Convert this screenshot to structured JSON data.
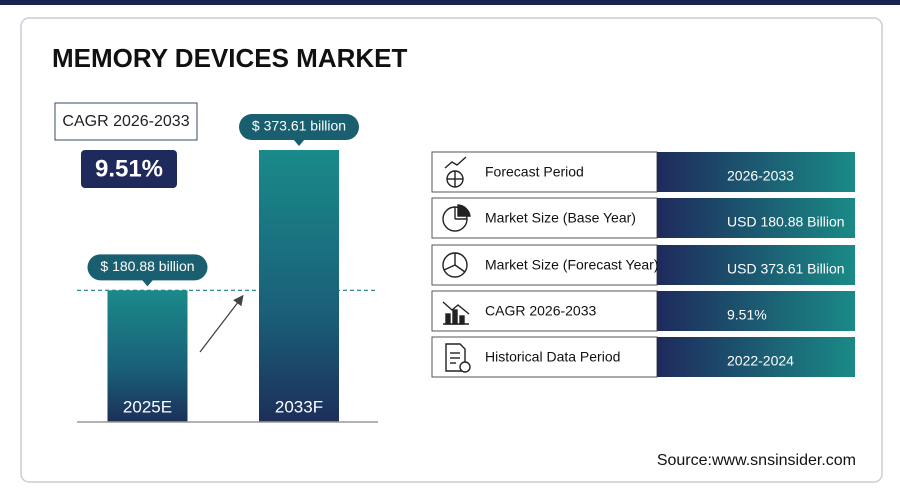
{
  "chart_data": {
    "type": "bar",
    "title": "MEMORY DEVICES MARKET",
    "categories": [
      "2025E",
      "2033F"
    ],
    "values": [
      180.88,
      373.61
    ],
    "value_labels": [
      "$ 180.88 billion",
      "$ 373.61 billion"
    ]
  },
  "cagr": {
    "label": "CAGR 2026-2033",
    "value": "9.51%"
  },
  "table": {
    "rows": [
      [
        "Forecast Period",
        "2026-2033"
      ],
      [
        "Market Size (Base Year)",
        "USD 180.88 Billion"
      ],
      [
        "Market Size (Forecast Year)",
        "USD 373.61 Billion"
      ],
      [
        "CAGR 2026-2033",
        "9.51%"
      ],
      [
        "Historical Data Period",
        "2022-2024"
      ]
    ]
  },
  "source": "Source:www.snsinsider.com"
}
